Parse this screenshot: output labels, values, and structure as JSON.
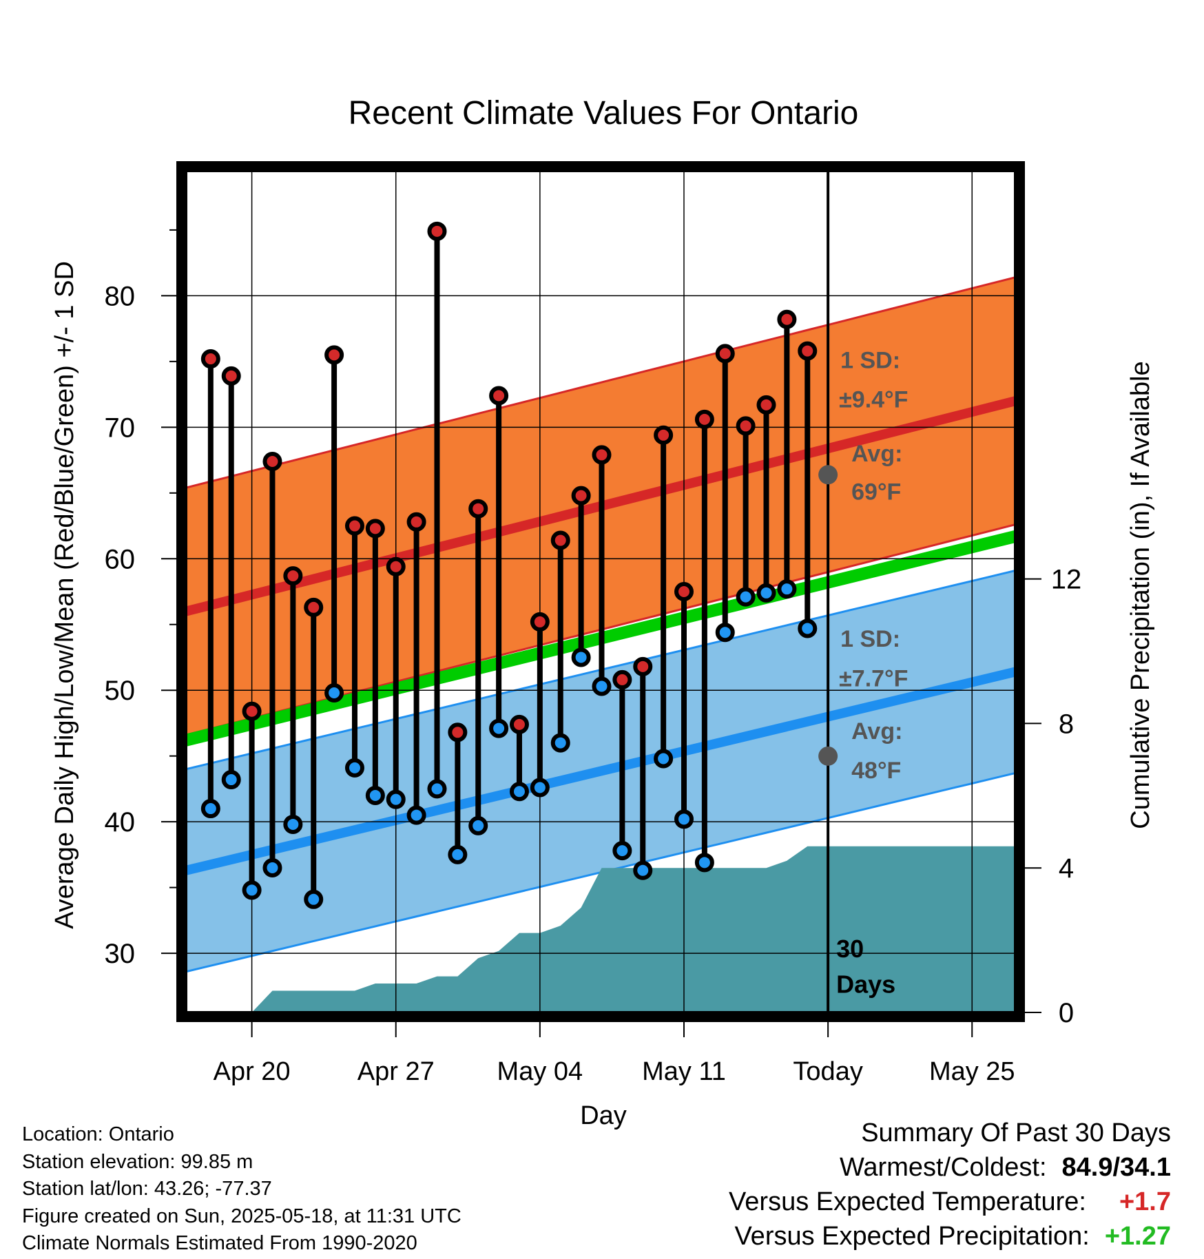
{
  "chart_data": {
    "type": "line",
    "title": "Recent Climate Values For Ontario",
    "xlabel": "Day",
    "ylabel": "Average Daily High/Low/Mean (Red/Blue/Green) +/- 1 SD",
    "y2label": "Cumulative Precipitation (in), If Available",
    "ylim": [
      25.5,
      89.5
    ],
    "y2lim": [
      0,
      23.3
    ],
    "x_ticks": [
      {
        "day": 2,
        "label": "Apr 20"
      },
      {
        "day": 9,
        "label": "Apr 27"
      },
      {
        "day": 16,
        "label": "May 04"
      },
      {
        "day": 23,
        "label": "May 11"
      },
      {
        "day": 30,
        "label": "Today"
      },
      {
        "day": 37,
        "label": "May 25"
      }
    ],
    "y_ticks": [
      30,
      40,
      50,
      60,
      70,
      80
    ],
    "y2_ticks": [
      0,
      4,
      8,
      12
    ],
    "xlim": [
      -1.2,
      39.1
    ],
    "today_day": 30,
    "days_label": "30\nDays",
    "grid": true,
    "normals": {
      "high_avg": {
        "start": 56.0,
        "end": 72.0
      },
      "high_sd": 9.4,
      "low_avg": {
        "start": 36.3,
        "end": 51.4
      },
      "low_sd": 7.7,
      "mean_avg": {
        "start": 46.2,
        "end": 61.7
      }
    },
    "annotations": {
      "high_sd_label": "1 SD:",
      "high_sd_value": "±9.4°F",
      "high_avg_label": "Avg:",
      "high_avg_value": "69°F",
      "low_sd_label": "1 SD:",
      "low_sd_value": "±7.7°F",
      "low_avg_label": "Avg:",
      "low_avg_value": "48°F"
    },
    "daily": [
      {
        "day": 0,
        "high": 75.2,
        "low": 41.0
      },
      {
        "day": 1,
        "high": 73.9,
        "low": 43.2
      },
      {
        "day": 2,
        "high": 48.4,
        "low": 34.8
      },
      {
        "day": 3,
        "high": 67.4,
        "low": 36.5
      },
      {
        "day": 4,
        "high": 58.7,
        "low": 39.8
      },
      {
        "day": 5,
        "high": 56.3,
        "low": 34.1
      },
      {
        "day": 6,
        "high": 75.5,
        "low": 49.8
      },
      {
        "day": 7,
        "high": 62.5,
        "low": 44.1
      },
      {
        "day": 8,
        "high": 62.3,
        "low": 42.0
      },
      {
        "day": 9,
        "high": 59.4,
        "low": 41.7
      },
      {
        "day": 10,
        "high": 62.8,
        "low": 40.5
      },
      {
        "day": 11,
        "high": 84.9,
        "low": 42.5
      },
      {
        "day": 12,
        "high": 46.8,
        "low": 37.5
      },
      {
        "day": 13,
        "high": 63.8,
        "low": 39.7
      },
      {
        "day": 14,
        "high": 72.4,
        "low": 47.1
      },
      {
        "day": 15,
        "high": 47.4,
        "low": 42.3
      },
      {
        "day": 16,
        "high": 55.2,
        "low": 42.6
      },
      {
        "day": 17,
        "high": 61.4,
        "low": 46.0
      },
      {
        "day": 18,
        "high": 64.8,
        "low": 52.5
      },
      {
        "day": 19,
        "high": 67.9,
        "low": 50.3
      },
      {
        "day": 20,
        "high": 50.8,
        "low": 37.8
      },
      {
        "day": 21,
        "high": 51.8,
        "low": 36.3
      },
      {
        "day": 22,
        "high": 69.4,
        "low": 44.8
      },
      {
        "day": 23,
        "high": 57.5,
        "low": 40.2
      },
      {
        "day": 24,
        "high": 70.6,
        "low": 36.9
      },
      {
        "day": 25,
        "high": 75.6,
        "low": 54.4
      },
      {
        "day": 26,
        "high": 70.1,
        "low": 57.1
      },
      {
        "day": 27,
        "high": 71.7,
        "low": 57.4
      },
      {
        "day": 28,
        "high": 78.2,
        "low": 57.7
      },
      {
        "day": 29,
        "high": 75.8,
        "low": 54.7
      }
    ],
    "precip_cumulative": [
      [
        2.0,
        0.0
      ],
      [
        3.0,
        0.6
      ],
      [
        5.0,
        0.6
      ],
      [
        6.0,
        0.6
      ],
      [
        7.0,
        0.6
      ],
      [
        8.0,
        0.8
      ],
      [
        9.0,
        0.8
      ],
      [
        10.0,
        0.8
      ],
      [
        11.0,
        1.0
      ],
      [
        12.0,
        1.0
      ],
      [
        13.0,
        1.5
      ],
      [
        14.0,
        1.7
      ],
      [
        15.0,
        2.2
      ],
      [
        16.0,
        2.2
      ],
      [
        17.0,
        2.4
      ],
      [
        18.0,
        2.9
      ],
      [
        19.0,
        4.0
      ],
      [
        20.0,
        4.0
      ],
      [
        21.0,
        4.0
      ],
      [
        22.0,
        4.0
      ],
      [
        23.0,
        4.0
      ],
      [
        24.0,
        4.0
      ],
      [
        25.0,
        4.0
      ],
      [
        26.0,
        4.0
      ],
      [
        27.0,
        4.0
      ],
      [
        28.0,
        4.2
      ],
      [
        29.0,
        4.6
      ],
      [
        30.0,
        4.6
      ],
      [
        39.1,
        4.6
      ]
    ],
    "colors": {
      "high_band": "#f47c32",
      "high_line": "#d62727",
      "low_band": "#85c1e8",
      "low_line": "#1e8ff0",
      "mean_line": "#00cc00",
      "precip": "#4a9aa4",
      "high_marker": "#d42a2a",
      "low_marker": "#2196f3",
      "annotation": "#555555"
    }
  },
  "info": {
    "location": "Location: Ontario",
    "elevation": "Station elevation: 99.85 m",
    "latlon": "Station lat/lon: 43.26; -77.37",
    "created": "Figure created on Sun, 2025-05-18, at 11:31 UTC",
    "normals": "Climate Normals Estimated From 1990-2020"
  },
  "summary": {
    "title": "Summary Of Past 30 Days",
    "warm_cold_label": "Warmest/Coldest:",
    "warm_cold_value": "84.9/34.1",
    "temp_label": "Versus Expected Temperature:",
    "temp_value": "+1.7",
    "temp_color": "#d62727",
    "precip_label": "Versus Expected Precipitation:",
    "precip_value": "+1.27",
    "precip_color": "#22bb22"
  }
}
